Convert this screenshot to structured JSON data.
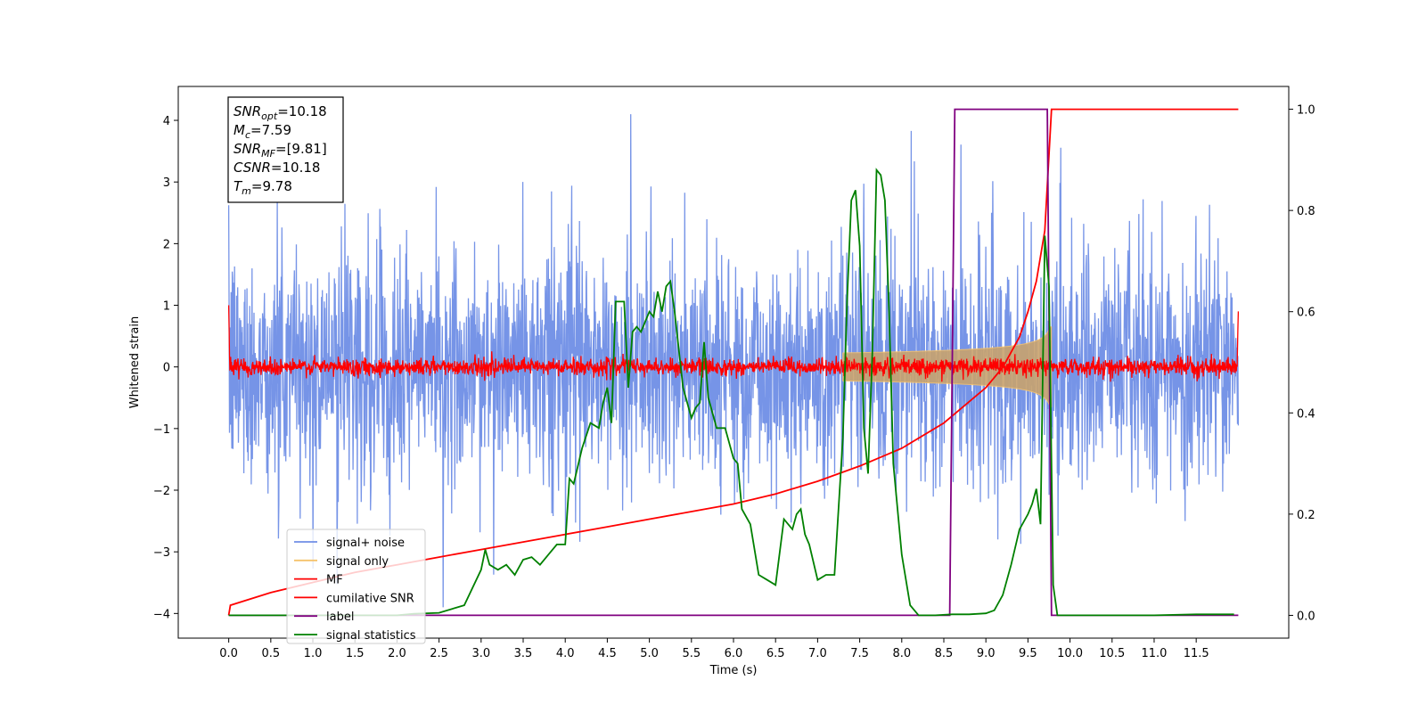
{
  "chart_data": {
    "type": "line",
    "title": "",
    "xlabel": "Time (s)",
    "ylabel": "Whitened strain",
    "y2label": "",
    "xlim": [
      -0.6,
      12.6
    ],
    "ylim": [
      -4.4,
      4.55
    ],
    "y2lim": [
      -0.045,
      1.045
    ],
    "x_ticks": [
      "0.0",
      "0.5",
      "1.0",
      "1.5",
      "2.0",
      "2.5",
      "3.0",
      "3.5",
      "4.0",
      "4.5",
      "5.0",
      "5.5",
      "6.0",
      "6.5",
      "7.0",
      "7.5",
      "8.0",
      "8.5",
      "9.0",
      "9.5",
      "10.0",
      "10.5",
      "11.0",
      "11.5"
    ],
    "y_ticks": [
      -4,
      -3,
      -2,
      -1,
      0,
      1,
      2,
      3,
      4
    ],
    "y2_ticks": [
      "0.0",
      "0.2",
      "0.4",
      "0.6",
      "0.8",
      "1.0"
    ],
    "grid": false,
    "legend_position": "lower-left",
    "annotation": {
      "lines": [
        {
          "base": "SNR",
          "sub": "opt",
          "rest": "=10.18"
        },
        {
          "base": "M",
          "sub": "c",
          "rest": "=7.59"
        },
        {
          "base": "SNR",
          "sub": "MF",
          "rest": "=[9.81]"
        },
        {
          "base": "CSNR",
          "sub": "",
          "rest": "=10.18"
        },
        {
          "base": "T",
          "sub": "m",
          "rest": "=9.78"
        }
      ]
    },
    "series": [
      {
        "name": "signal+ noise",
        "color": "#6f8ee6",
        "axis": "left",
        "kind": "noise",
        "amplitude_sd": 1.05,
        "x_range": [
          0.0,
          12.0
        ]
      },
      {
        "name": "signal only",
        "color": "#f5c26b",
        "axis": "left",
        "kind": "chirp",
        "merger_time": 9.78,
        "peak_amplitude": 0.65
      },
      {
        "name": "MF",
        "color": "#ff0000",
        "axis": "left",
        "kind": "mf_noise",
        "amplitude_sd": 0.07,
        "x_range": [
          0.0,
          12.0
        ]
      },
      {
        "name": "cumilative SNR",
        "color": "#ff0000",
        "axis": "right",
        "x": [
          0.0,
          0.02,
          0.5,
          1.0,
          1.5,
          2.0,
          2.5,
          3.0,
          3.5,
          4.0,
          4.5,
          5.0,
          5.5,
          6.0,
          6.5,
          7.0,
          7.5,
          8.0,
          8.5,
          9.0,
          9.2,
          9.4,
          9.5,
          9.6,
          9.7,
          9.78,
          12.0
        ],
        "values": [
          0.0,
          0.02,
          0.045,
          0.065,
          0.085,
          0.1,
          0.115,
          0.13,
          0.145,
          0.16,
          0.175,
          0.19,
          0.205,
          0.22,
          0.24,
          0.265,
          0.295,
          0.33,
          0.38,
          0.45,
          0.49,
          0.55,
          0.6,
          0.66,
          0.76,
          1.0,
          1.0
        ]
      },
      {
        "name": "label",
        "color": "#800080",
        "axis": "right",
        "x": [
          0.0,
          8.57,
          8.63,
          9.73,
          9.78,
          12.0
        ],
        "values": [
          0.0,
          0.0,
          1.0,
          1.0,
          0.0,
          0.0
        ]
      },
      {
        "name": "signal statistics",
        "color": "#008000",
        "axis": "right",
        "x": [
          0.0,
          0.5,
          1.0,
          1.5,
          2.0,
          2.2,
          2.5,
          2.8,
          3.0,
          3.05,
          3.1,
          3.2,
          3.3,
          3.4,
          3.5,
          3.6,
          3.7,
          3.8,
          3.9,
          4.0,
          4.05,
          4.1,
          4.2,
          4.3,
          4.4,
          4.45,
          4.5,
          4.55,
          4.6,
          4.65,
          4.7,
          4.75,
          4.8,
          4.85,
          4.9,
          5.0,
          5.05,
          5.1,
          5.15,
          5.2,
          5.25,
          5.3,
          5.4,
          5.5,
          5.55,
          5.6,
          5.65,
          5.7,
          5.8,
          5.9,
          6.0,
          6.05,
          6.1,
          6.2,
          6.3,
          6.4,
          6.5,
          6.6,
          6.7,
          6.75,
          6.8,
          6.85,
          6.9,
          7.0,
          7.1,
          7.2,
          7.3,
          7.35,
          7.4,
          7.45,
          7.5,
          7.55,
          7.6,
          7.65,
          7.7,
          7.75,
          7.8,
          7.85,
          7.9,
          8.0,
          8.1,
          8.2,
          8.4,
          8.6,
          8.8,
          9.0,
          9.1,
          9.2,
          9.3,
          9.4,
          9.5,
          9.55,
          9.6,
          9.65,
          9.7,
          9.75,
          9.8,
          9.85,
          10.0,
          10.5,
          11.0,
          11.5,
          11.95
        ],
        "values": [
          0.0,
          0.0,
          0.0,
          0.0,
          0.0,
          0.003,
          0.005,
          0.02,
          0.09,
          0.13,
          0.1,
          0.09,
          0.1,
          0.08,
          0.11,
          0.115,
          0.1,
          0.12,
          0.14,
          0.14,
          0.27,
          0.26,
          0.33,
          0.38,
          0.37,
          0.42,
          0.45,
          0.38,
          0.62,
          0.62,
          0.62,
          0.45,
          0.56,
          0.57,
          0.56,
          0.6,
          0.59,
          0.64,
          0.6,
          0.65,
          0.66,
          0.6,
          0.45,
          0.39,
          0.41,
          0.42,
          0.54,
          0.43,
          0.37,
          0.37,
          0.31,
          0.3,
          0.21,
          0.18,
          0.08,
          0.07,
          0.06,
          0.19,
          0.17,
          0.2,
          0.21,
          0.16,
          0.14,
          0.07,
          0.08,
          0.08,
          0.35,
          0.62,
          0.82,
          0.84,
          0.73,
          0.37,
          0.28,
          0.52,
          0.88,
          0.87,
          0.82,
          0.6,
          0.3,
          0.12,
          0.02,
          0.0,
          0.0,
          0.002,
          0.002,
          0.004,
          0.01,
          0.04,
          0.1,
          0.17,
          0.2,
          0.22,
          0.25,
          0.18,
          0.75,
          0.65,
          0.06,
          0.0,
          0.0,
          0.0,
          0.0,
          0.002,
          0.002
        ]
      }
    ]
  }
}
